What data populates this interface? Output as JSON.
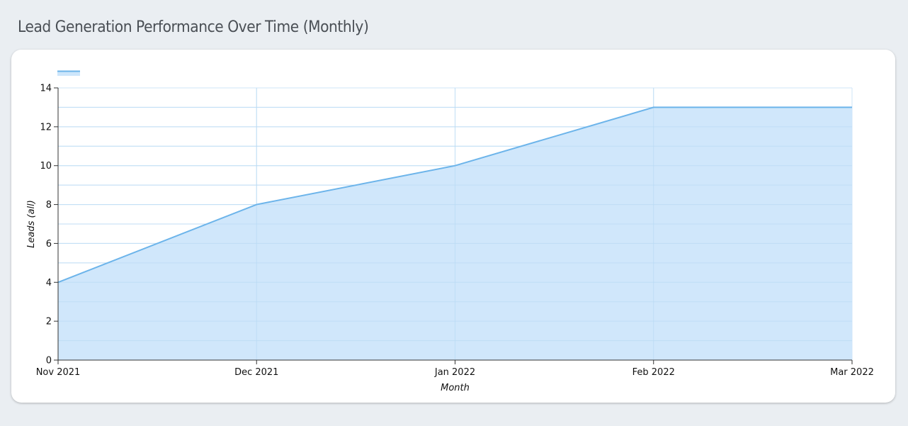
{
  "page": {
    "title": "Lead Generation Performance Over Time (Monthly)"
  },
  "chart_data": {
    "type": "area",
    "categories": [
      "Nov 2021",
      "Dec 2021",
      "Jan 2022",
      "Feb 2022",
      "Mar 2022"
    ],
    "series": [
      {
        "name": "",
        "values": [
          4,
          8,
          10,
          13,
          13
        ]
      }
    ],
    "title": "",
    "xlabel": "Month",
    "ylabel": "Leads (all)",
    "ylim": [
      0,
      14
    ],
    "yticks": [
      0,
      2,
      4,
      6,
      8,
      10,
      12,
      14
    ],
    "grid": true,
    "legend": "top-left",
    "colors": {
      "line": "#6cb4ea",
      "fill": "#cde6fb",
      "grid": "#cfe6f7",
      "axis": "#333333"
    }
  }
}
